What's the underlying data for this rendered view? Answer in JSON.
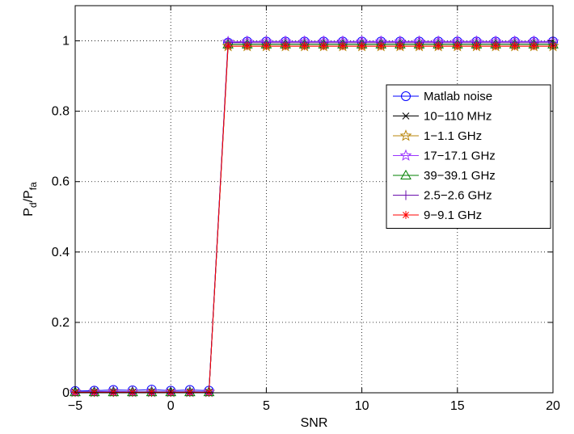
{
  "chart_data": {
    "type": "line",
    "xlabel": "SNR",
    "ylabel": {
      "main": "P",
      "sub1": "d",
      "slash": "/P",
      "sub2": "fa"
    },
    "xlim": [
      -5,
      20
    ],
    "ylim": [
      0,
      1.1
    ],
    "xticks": [
      -5,
      0,
      5,
      10,
      15,
      20
    ],
    "yticks": [
      0,
      0.2,
      0.4,
      0.6,
      0.8,
      1
    ],
    "ytick_labels": [
      "0",
      "0.2",
      "0.4",
      "0.6",
      "0.8",
      "1"
    ],
    "xtick_labels": [
      "−5",
      "0",
      "5",
      "10",
      "15",
      "20"
    ],
    "grid": true,
    "legend_position": "right",
    "x": [
      -5,
      -4,
      -3,
      -2,
      -1,
      0,
      1,
      2,
      3,
      4,
      5,
      6,
      7,
      8,
      9,
      10,
      11,
      12,
      13,
      14,
      15,
      16,
      17,
      18,
      19,
      20
    ],
    "series": [
      {
        "name": "Matlab noise",
        "color": "#0000ff",
        "marker": "circle",
        "values": [
          0.005,
          0.006,
          0.008,
          0.007,
          0.009,
          0.006,
          0.008,
          0.006,
          0.995,
          0.998,
          0.998,
          0.998,
          0.998,
          0.998,
          0.998,
          0.998,
          0.998,
          0.998,
          0.998,
          0.998,
          0.998,
          0.998,
          0.998,
          0.998,
          0.998,
          0.998
        ]
      },
      {
        "name": "10−110 MHz",
        "color": "#000000",
        "marker": "x",
        "values": [
          0.002,
          0.003,
          0.003,
          0.002,
          0.003,
          0.002,
          0.003,
          0.002,
          0.99,
          0.99,
          0.99,
          0.99,
          0.99,
          0.99,
          0.99,
          0.99,
          0.99,
          0.99,
          0.99,
          0.99,
          0.99,
          0.99,
          0.99,
          0.99,
          0.99,
          0.99
        ]
      },
      {
        "name": "1−1.1 GHz",
        "color": "#b8860b",
        "marker": "star5",
        "values": [
          0.002,
          0.002,
          0.003,
          0.002,
          0.002,
          0.002,
          0.002,
          0.002,
          0.985,
          0.985,
          0.985,
          0.985,
          0.985,
          0.985,
          0.985,
          0.985,
          0.985,
          0.985,
          0.985,
          0.985,
          0.985,
          0.985,
          0.985,
          0.985,
          0.985,
          0.985
        ]
      },
      {
        "name": "17−17.1 GHz",
        "color": "#9933ff",
        "marker": "star5",
        "values": [
          0.003,
          0.003,
          0.004,
          0.003,
          0.003,
          0.003,
          0.003,
          0.003,
          0.997,
          0.998,
          0.998,
          0.998,
          0.998,
          0.998,
          0.998,
          0.998,
          0.998,
          0.998,
          0.998,
          0.998,
          0.998,
          0.998,
          0.998,
          0.998,
          0.998,
          0.998
        ]
      },
      {
        "name": "39−39.1 GHz",
        "color": "#008000",
        "marker": "triangle",
        "values": [
          0.002,
          0.002,
          0.002,
          0.002,
          0.002,
          0.002,
          0.002,
          0.002,
          0.99,
          0.99,
          0.99,
          0.99,
          0.99,
          0.99,
          0.99,
          0.99,
          0.99,
          0.99,
          0.99,
          0.99,
          0.99,
          0.99,
          0.99,
          0.99,
          0.99,
          0.99
        ]
      },
      {
        "name": "2.5−2.6 GHz",
        "color": "#6a0dad",
        "marker": "plus",
        "values": [
          0.002,
          0.002,
          0.002,
          0.002,
          0.002,
          0.002,
          0.002,
          0.002,
          0.995,
          0.995,
          0.995,
          0.995,
          0.995,
          0.995,
          0.995,
          0.995,
          0.995,
          0.995,
          0.995,
          0.995,
          0.995,
          0.995,
          0.995,
          0.995,
          0.995,
          0.995
        ]
      },
      {
        "name": "9−9.1 GHz",
        "color": "#ff0000",
        "marker": "asterisk",
        "values": [
          0.001,
          0.001,
          0.001,
          0.001,
          0.001,
          0.001,
          0.001,
          0.001,
          0.985,
          0.985,
          0.985,
          0.985,
          0.985,
          0.985,
          0.985,
          0.985,
          0.985,
          0.985,
          0.985,
          0.985,
          0.985,
          0.985,
          0.985,
          0.985,
          0.985,
          0.985
        ]
      }
    ]
  }
}
